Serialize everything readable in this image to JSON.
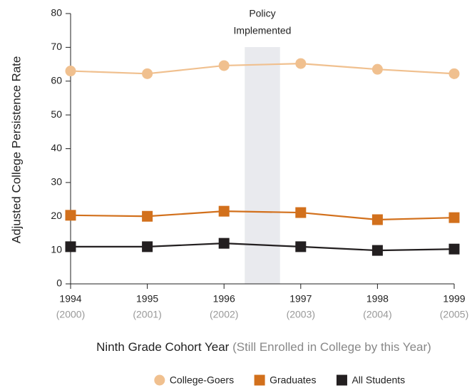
{
  "chart_data": {
    "type": "line",
    "ylabel": "Adjusted College Persistence Rate",
    "xlabel": "Ninth Grade Cohort Year",
    "xlabel_note": "(Still Enrolled in College by this Year)",
    "categories": [
      "1994",
      "1995",
      "1996",
      "1997",
      "1998",
      "1999"
    ],
    "category_notes": [
      "(2000)",
      "(2001)",
      "(2002)",
      "(2003)",
      "(2004)",
      "(2005)"
    ],
    "annotation": [
      "Policy",
      "Implemented"
    ],
    "ylim": [
      0,
      80
    ],
    "yticks": [
      0,
      10,
      20,
      30,
      40,
      50,
      60,
      70,
      80
    ],
    "grid": false,
    "legend": "bottom",
    "series": [
      {
        "name": "College-Goers",
        "color": "#f0c08f",
        "marker": "circle",
        "values": [
          63.0,
          62.2,
          64.6,
          65.2,
          63.5,
          62.2
        ]
      },
      {
        "name": "Graduates",
        "color": "#d2701c",
        "marker": "square",
        "values": [
          20.3,
          20.0,
          21.5,
          21.1,
          19.0,
          19.6
        ]
      },
      {
        "name": "All Students",
        "color": "#231f20",
        "marker": "square",
        "values": [
          11.0,
          11.0,
          12.0,
          11.0,
          9.9,
          10.3
        ]
      }
    ]
  }
}
